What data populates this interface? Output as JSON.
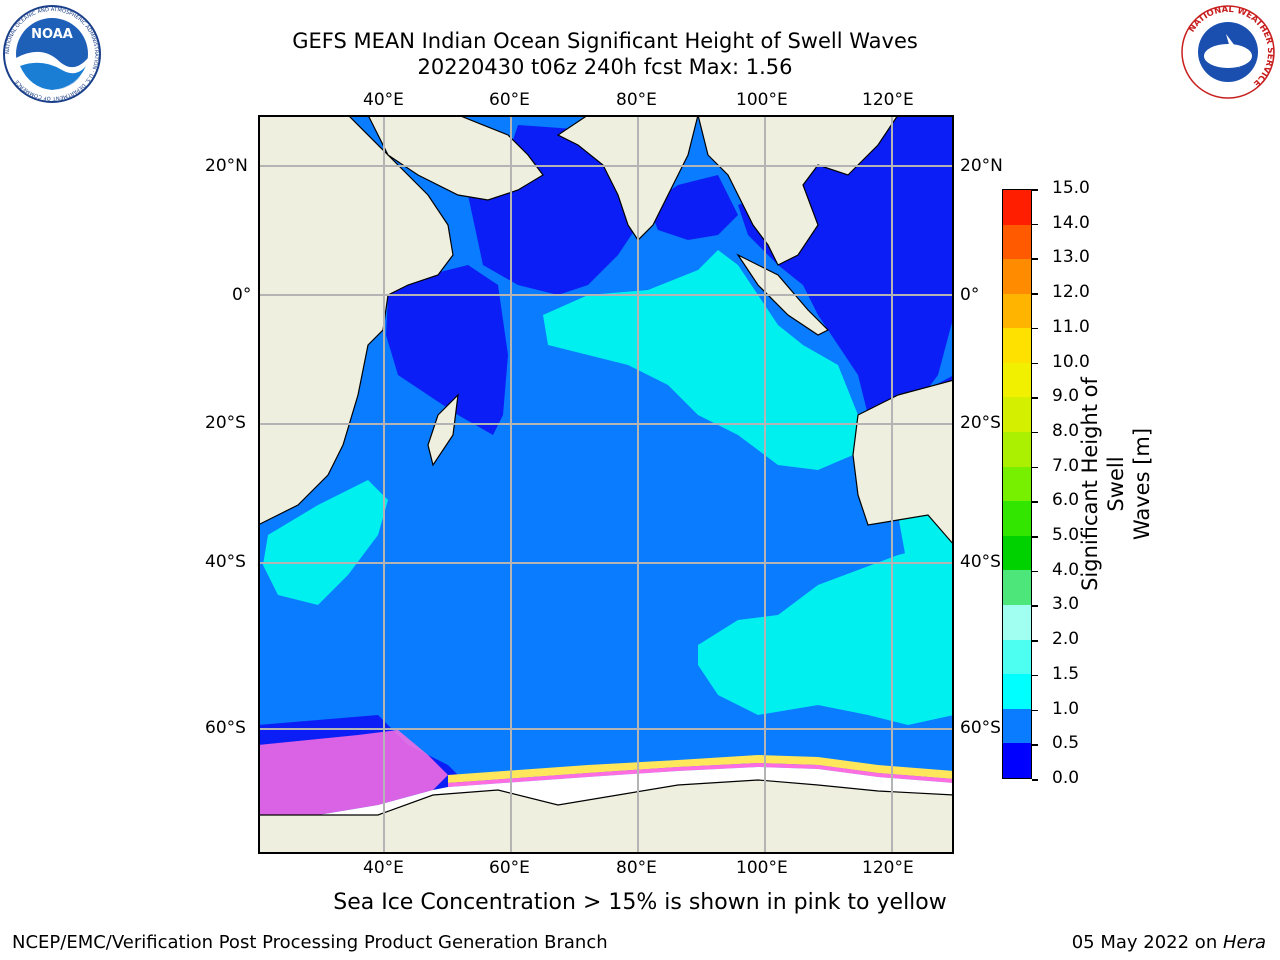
{
  "header": {
    "title_line1": "GEFS MEAN Indian Ocean Significant Height of Swell Waves",
    "title_line2": "20220430 t06z 240h fcst   Max: 1.56"
  },
  "logos": {
    "left": "NOAA",
    "left_ring": "NATIONAL OCEANIC AND ATMOSPHERIC ADMINISTRATION · U.S. DEPARTMENT OF COMMERCE",
    "right_ring": "NATIONAL WEATHER SERVICE"
  },
  "map": {
    "lon_ticks": [
      "40°E",
      "60°E",
      "80°E",
      "100°E",
      "120°E"
    ],
    "lat_ticks": [
      "20°N",
      "0°",
      "20°S",
      "40°S",
      "60°S"
    ],
    "colors": {
      "land": "#efefdf",
      "ocean_low": "#0a1ef5",
      "ocean_mid": "#0a7cff",
      "ocean_high": "#00f0f0",
      "ice_pink": "#ff6ee0",
      "ice_yellow": "#ffe65a",
      "ice_white": "#ffffff",
      "grid": "#b4b4b4"
    }
  },
  "colorbar": {
    "label_line1": "Significant Height of Swell",
    "label_line2": "Waves [m]",
    "levels": [
      "0.0",
      "0.5",
      "1.0",
      "1.5",
      "2.0",
      "3.0",
      "4.0",
      "5.0",
      "6.0",
      "7.0",
      "8.0",
      "9.0",
      "10.0",
      "11.0",
      "12.0",
      "13.0",
      "14.0",
      "15.0"
    ],
    "colors": [
      "#0000ff",
      "#0a7cff",
      "#00ffff",
      "#4dfff0",
      "#a0fff0",
      "#4de67a",
      "#00d200",
      "#33e600",
      "#77f000",
      "#aaf000",
      "#d4f000",
      "#f0f000",
      "#ffe100",
      "#ffb400",
      "#ff8c00",
      "#ff5a00",
      "#ff1e00"
    ]
  },
  "notes": {
    "ice": "Sea Ice Concentration > 15% is shown in pink to yellow",
    "branch": "NCEP/EMC/Verification Post Processing Product Generation Branch",
    "date": "05 May 2022 on ",
    "machine": "Hera"
  }
}
